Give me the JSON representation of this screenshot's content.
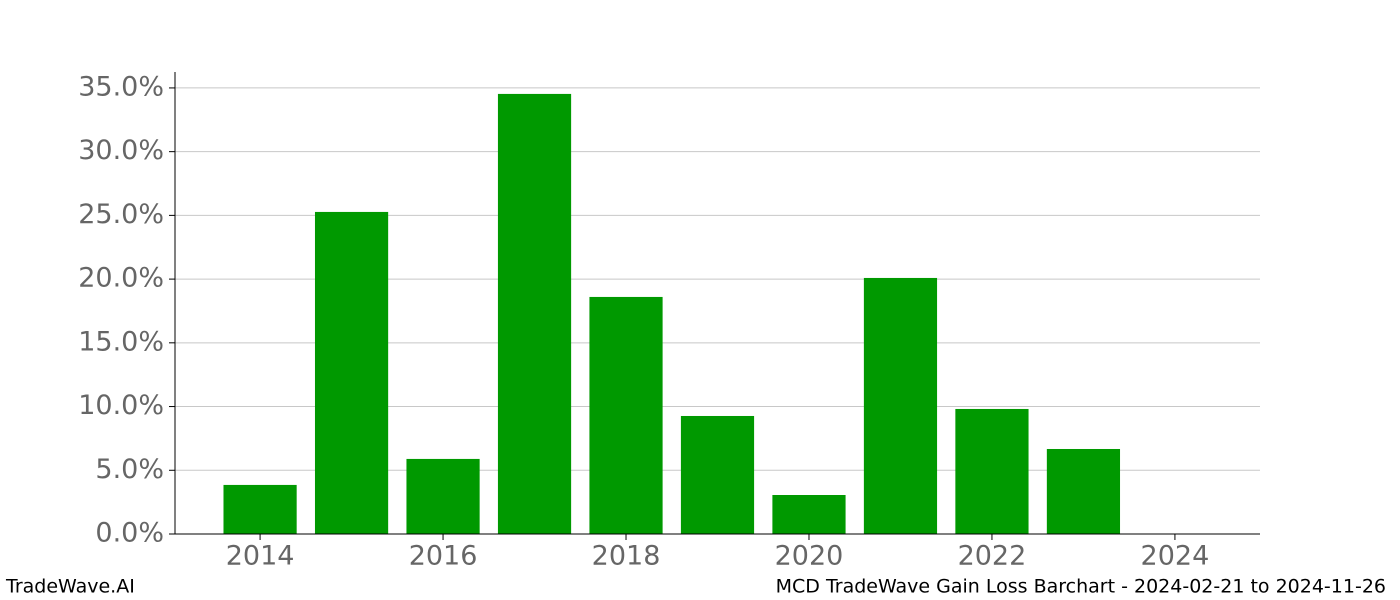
{
  "chart_data": {
    "type": "bar",
    "title": "MCD TradeWave Gain Loss Barchart - 2024-02-21 to 2024-11-26",
    "source": "TradeWave.AI",
    "x": [
      2014,
      2015,
      2016,
      2017,
      2018,
      2019,
      2020,
      2021,
      2022,
      2023
    ],
    "values": [
      3.85,
      25.27,
      5.89,
      34.53,
      18.6,
      9.26,
      3.06,
      20.09,
      9.81,
      6.67
    ],
    "color": "#009900",
    "xlim": [
      2013.07,
      2024.93
    ],
    "xticks": [
      2014,
      2016,
      2018,
      2020,
      2022,
      2024
    ],
    "ylim": [
      0,
      36.25
    ],
    "yticks": [
      {
        "value": 0,
        "label": "0.0%"
      },
      {
        "value": 5,
        "label": "5.0%"
      },
      {
        "value": 10,
        "label": "10.0%"
      },
      {
        "value": 15,
        "label": "15.0%"
      },
      {
        "value": 20,
        "label": "20.0%"
      },
      {
        "value": 25,
        "label": "25.0%"
      },
      {
        "value": 30,
        "label": "30.0%"
      },
      {
        "value": 35,
        "label": "35.0%"
      }
    ],
    "grid": true
  }
}
